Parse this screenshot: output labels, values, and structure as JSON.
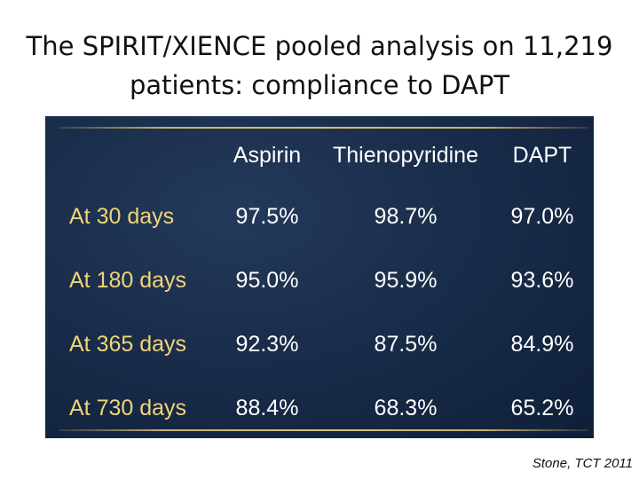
{
  "slide": {
    "title_line1": "The SPIRIT/XIENCE pooled analysis on 11,219",
    "title_line2": "patients: compliance to DAPT",
    "citation": "Stone, TCT 2011"
  },
  "table": {
    "headers": [
      "Aspirin",
      "Thienopyridine",
      "DAPT"
    ],
    "rows": [
      {
        "label": "At 30 days",
        "values": [
          "97.5%",
          "98.7%",
          "97.0%"
        ]
      },
      {
        "label": "At 180 days",
        "values": [
          "95.0%",
          "95.9%",
          "93.6%"
        ]
      },
      {
        "label": "At 365 days",
        "values": [
          "92.3%",
          "87.5%",
          "84.9%"
        ]
      },
      {
        "label": "At 730 days",
        "values": [
          "88.4%",
          "68.3%",
          "65.2%"
        ]
      }
    ]
  },
  "colors": {
    "panel_bg": "#172a47",
    "rule_gold": "#c9b06c",
    "row_label": "#f1d47a",
    "cell_text": "#ffffff"
  }
}
